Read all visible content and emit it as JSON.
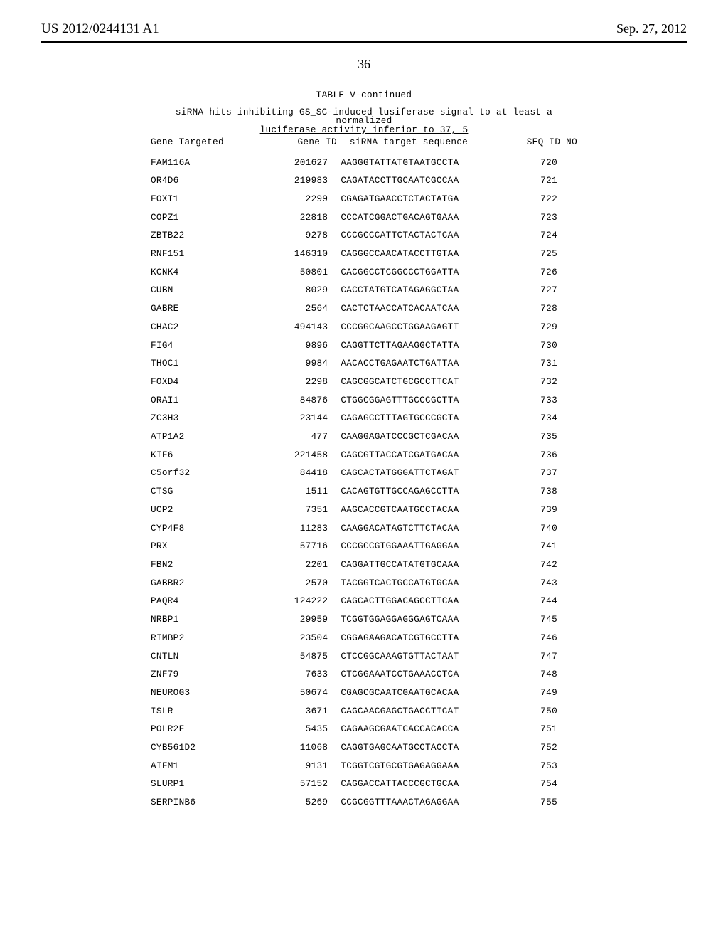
{
  "header": {
    "pub_number": "US 2012/0244131 A1",
    "pub_date": "Sep. 27, 2012",
    "page_number": "36"
  },
  "table": {
    "label": "TABLE V-continued",
    "caption_line1": "siRNA hits inhibiting GS_SC-induced lusiferase signal to at least a normalized",
    "caption_line2": "luciferase activity inferior to 37, 5",
    "columns": {
      "gene": "Gene Targeted",
      "gene_id": "Gene ID",
      "seq": "siRNA target sequence",
      "seq_id": "SEQ ID NO"
    },
    "rows": [
      {
        "gene": "FAM116A",
        "id": "201627",
        "seq": "AAGGGTATTATGTAATGCCTA",
        "sid": "720"
      },
      {
        "gene": "OR4D6",
        "id": "219983",
        "seq": "CAGATACCTTGCAATCGCCAA",
        "sid": "721"
      },
      {
        "gene": "FOXI1",
        "id": "2299",
        "seq": "CGAGATGAACCTCTACTATGA",
        "sid": "722"
      },
      {
        "gene": "COPZ1",
        "id": "22818",
        "seq": "CCCATCGGACTGACAGTGAAA",
        "sid": "723"
      },
      {
        "gene": "ZBTB22",
        "id": "9278",
        "seq": "CCCGCCCATTCTACTACTCAA",
        "sid": "724"
      },
      {
        "gene": "RNF151",
        "id": "146310",
        "seq": "CAGGGCCAACATACCTTGTAA",
        "sid": "725"
      },
      {
        "gene": "KCNK4",
        "id": "50801",
        "seq": "CACGGCCTCGGCCCTGGATTA",
        "sid": "726"
      },
      {
        "gene": "CUBN",
        "id": "8029",
        "seq": "CACCTATGTCATAGAGGCTAA",
        "sid": "727"
      },
      {
        "gene": "GABRE",
        "id": "2564",
        "seq": "CACTCTAACCATCACAATCAA",
        "sid": "728"
      },
      {
        "gene": "CHAC2",
        "id": "494143",
        "seq": "CCCGGCAAGCCTGGAAGAGTT",
        "sid": "729"
      },
      {
        "gene": "FIG4",
        "id": "9896",
        "seq": "CAGGTTCTTAGAAGGCTATTA",
        "sid": "730"
      },
      {
        "gene": "THOC1",
        "id": "9984",
        "seq": "AACACCTGAGAATCTGATTAA",
        "sid": "731"
      },
      {
        "gene": "FOXD4",
        "id": "2298",
        "seq": "CAGCGGCATCTGCGCCTTCAT",
        "sid": "732"
      },
      {
        "gene": "ORAI1",
        "id": "84876",
        "seq": "CTGGCGGAGTTTGCCCGCTTA",
        "sid": "733"
      },
      {
        "gene": "ZC3H3",
        "id": "23144",
        "seq": "CAGAGCCTTTAGTGCCCGCTA",
        "sid": "734"
      },
      {
        "gene": "ATP1A2",
        "id": "477",
        "seq": "CAAGGAGATCCCGCTCGACAA",
        "sid": "735"
      },
      {
        "gene": "KIF6",
        "id": "221458",
        "seq": "CAGCGTTACCATCGATGACAA",
        "sid": "736"
      },
      {
        "gene": "C5orf32",
        "id": "84418",
        "seq": "CAGCACTATGGGATTCTAGAT",
        "sid": "737"
      },
      {
        "gene": "CTSG",
        "id": "1511",
        "seq": "CACAGTGTTGCCAGAGCCTTA",
        "sid": "738"
      },
      {
        "gene": "UCP2",
        "id": "7351",
        "seq": "AAGCACCGTCAATGCCTACAA",
        "sid": "739"
      },
      {
        "gene": "CYP4F8",
        "id": "11283",
        "seq": "CAAGGACATAGTCTTCTACAA",
        "sid": "740"
      },
      {
        "gene": "PRX",
        "id": "57716",
        "seq": "CCCGCCGTGGAAATTGAGGAA",
        "sid": "741"
      },
      {
        "gene": "FBN2",
        "id": "2201",
        "seq": "CAGGATTGCCATATGTGCAAA",
        "sid": "742"
      },
      {
        "gene": "GABBR2",
        "id": "2570",
        "seq": "TACGGTCACTGCCATGTGCAA",
        "sid": "743"
      },
      {
        "gene": "PAQR4",
        "id": "124222",
        "seq": "CAGCACTTGGACAGCCTTCAA",
        "sid": "744"
      },
      {
        "gene": "NRBP1",
        "id": "29959",
        "seq": "TCGGTGGAGGAGGGAGTCAAA",
        "sid": "745"
      },
      {
        "gene": "RIMBP2",
        "id": "23504",
        "seq": "CGGAGAAGACATCGTGCCTTA",
        "sid": "746"
      },
      {
        "gene": "CNTLN",
        "id": "54875",
        "seq": "CTCCGGCAAAGTGTTACTAAT",
        "sid": "747"
      },
      {
        "gene": "ZNF79",
        "id": "7633",
        "seq": "CTCGGAAATCCTGAAACCTCA",
        "sid": "748"
      },
      {
        "gene": "NEUROG3",
        "id": "50674",
        "seq": "CGAGCGCAATCGAATGCACAA",
        "sid": "749"
      },
      {
        "gene": "ISLR",
        "id": "3671",
        "seq": "CAGCAACGAGCTGACCTTCAT",
        "sid": "750"
      },
      {
        "gene": "POLR2F",
        "id": "5435",
        "seq": "CAGAAGCGAATCACCACACCA",
        "sid": "751"
      },
      {
        "gene": "CYB561D2",
        "id": "11068",
        "seq": "CAGGTGAGCAATGCCTACCTA",
        "sid": "752"
      },
      {
        "gene": "AIFM1",
        "id": "9131",
        "seq": "TCGGTCGTGCGTGAGAGGAAA",
        "sid": "753"
      },
      {
        "gene": "SLURP1",
        "id": "57152",
        "seq": "CAGGACCATTACCCGCTGCAA",
        "sid": "754"
      },
      {
        "gene": "SERPINB6",
        "id": "5269",
        "seq": "CCGCGGTTTAAACTAGAGGAA",
        "sid": "755"
      }
    ]
  }
}
